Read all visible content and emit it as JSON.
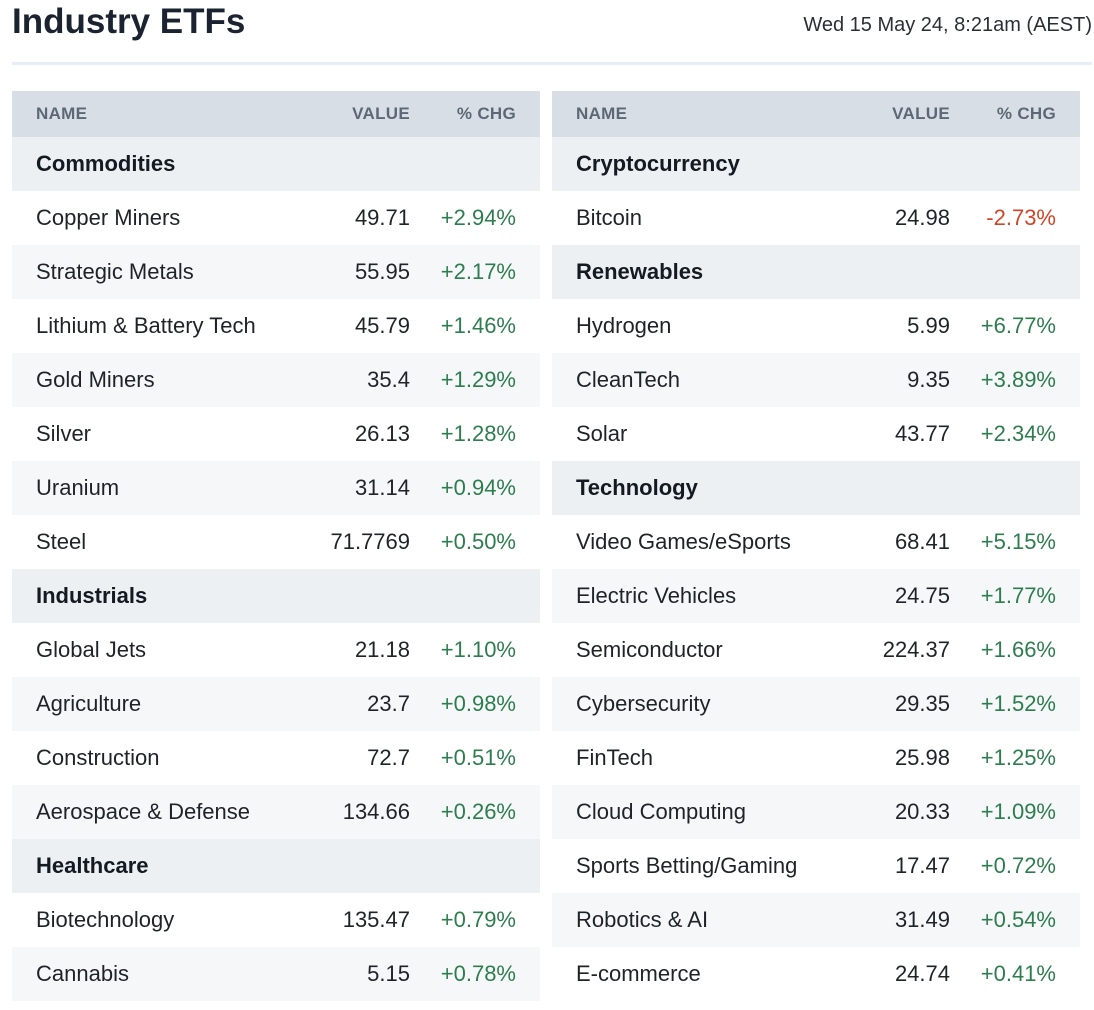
{
  "header": {
    "title": "Industry ETFs",
    "timestamp": "Wed 15 May 24, 8:21am (AEST)"
  },
  "columns": {
    "name": "NAME",
    "value": "VALUE",
    "chg": "% CHG"
  },
  "colors": {
    "positive": "#2e7d4f",
    "negative": "#d24427",
    "header_bg": "#d8dee5",
    "group_bg": "#ecf0f3"
  },
  "left": {
    "groups": [
      {
        "name": "Commodities",
        "items": [
          {
            "name": "Copper Miners",
            "value": "49.71",
            "chg": "+2.94%"
          },
          {
            "name": "Strategic Metals",
            "value": "55.95",
            "chg": "+2.17%"
          },
          {
            "name": "Lithium & Battery Tech",
            "value": "45.79",
            "chg": "+1.46%"
          },
          {
            "name": "Gold Miners",
            "value": "35.4",
            "chg": "+1.29%"
          },
          {
            "name": "Silver",
            "value": "26.13",
            "chg": "+1.28%"
          },
          {
            "name": "Uranium",
            "value": "31.14",
            "chg": "+0.94%"
          },
          {
            "name": "Steel",
            "value": "71.7769",
            "chg": "+0.50%"
          }
        ]
      },
      {
        "name": "Industrials",
        "items": [
          {
            "name": "Global Jets",
            "value": "21.18",
            "chg": "+1.10%"
          },
          {
            "name": "Agriculture",
            "value": "23.7",
            "chg": "+0.98%"
          },
          {
            "name": "Construction",
            "value": "72.7",
            "chg": "+0.51%"
          },
          {
            "name": "Aerospace & Defense",
            "value": "134.66",
            "chg": "+0.26%"
          }
        ]
      },
      {
        "name": "Healthcare",
        "items": [
          {
            "name": "Biotechnology",
            "value": "135.47",
            "chg": "+0.79%"
          },
          {
            "name": "Cannabis",
            "value": "5.15",
            "chg": "+0.78%"
          }
        ]
      }
    ]
  },
  "right": {
    "groups": [
      {
        "name": "Cryptocurrency",
        "items": [
          {
            "name": "Bitcoin",
            "value": "24.98",
            "chg": "-2.73%"
          }
        ]
      },
      {
        "name": "Renewables",
        "items": [
          {
            "name": "Hydrogen",
            "value": "5.99",
            "chg": "+6.77%"
          },
          {
            "name": "CleanTech",
            "value": "9.35",
            "chg": "+3.89%"
          },
          {
            "name": "Solar",
            "value": "43.77",
            "chg": "+2.34%"
          }
        ]
      },
      {
        "name": "Technology",
        "items": [
          {
            "name": "Video Games/eSports",
            "value": "68.41",
            "chg": "+5.15%"
          },
          {
            "name": "Electric Vehicles",
            "value": "24.75",
            "chg": "+1.77%"
          },
          {
            "name": "Semiconductor",
            "value": "224.37",
            "chg": "+1.66%"
          },
          {
            "name": "Cybersecurity",
            "value": "29.35",
            "chg": "+1.52%"
          },
          {
            "name": "FinTech",
            "value": "25.98",
            "chg": "+1.25%"
          },
          {
            "name": "Cloud Computing",
            "value": "20.33",
            "chg": "+1.09%"
          },
          {
            "name": "Sports Betting/Gaming",
            "value": "17.47",
            "chg": "+0.72%"
          },
          {
            "name": "Robotics & AI",
            "value": "31.49",
            "chg": "+0.54%"
          },
          {
            "name": "E-commerce",
            "value": "24.74",
            "chg": "+0.41%"
          }
        ]
      }
    ]
  }
}
